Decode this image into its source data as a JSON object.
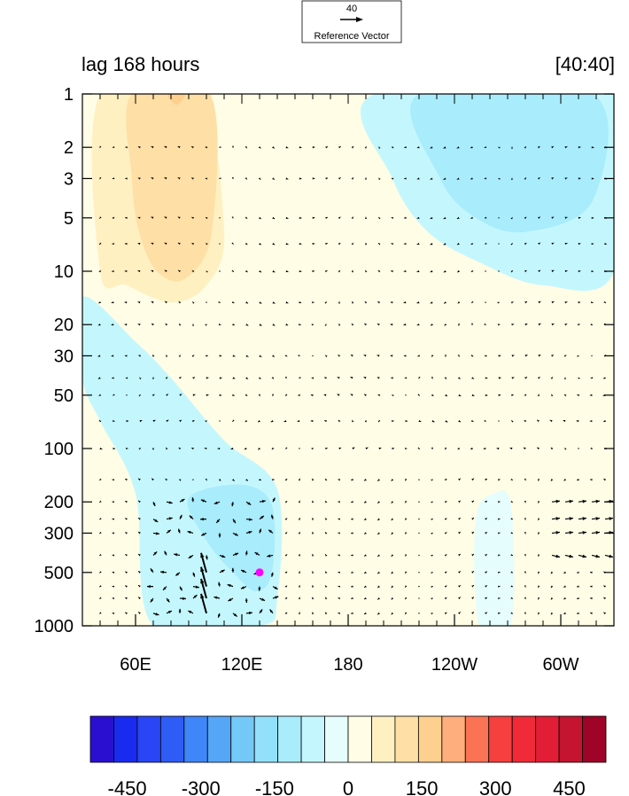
{
  "chart_data": {
    "type": "contour",
    "title_left": "lag 168 hours",
    "title_right": "[40:40]",
    "reference_vector": {
      "magnitude_label": "40",
      "label": "Reference Vector"
    },
    "x_axis": {
      "range_deg_east": [
        30,
        330
      ],
      "ticks": [
        {
          "lon": 60,
          "label": "60E"
        },
        {
          "lon": 120,
          "label": "120E"
        },
        {
          "lon": 180,
          "label": "180"
        },
        {
          "lon": 240,
          "label": "120W"
        },
        {
          "lon": 300,
          "label": "60W"
        }
      ]
    },
    "y_axis": {
      "scale": "log",
      "range_hpa": [
        1000,
        1
      ],
      "ticks": [
        {
          "value": 1,
          "label": "1"
        },
        {
          "value": 2,
          "label": "2"
        },
        {
          "value": 3,
          "label": "3"
        },
        {
          "value": 5,
          "label": "5"
        },
        {
          "value": 10,
          "label": "10"
        },
        {
          "value": 20,
          "label": "20"
        },
        {
          "value": 30,
          "label": "30"
        },
        {
          "value": 50,
          "label": "50"
        },
        {
          "value": 100,
          "label": "100"
        },
        {
          "value": 200,
          "label": "200"
        },
        {
          "value": 300,
          "label": "300"
        },
        {
          "value": 500,
          "label": "500"
        },
        {
          "value": 1000,
          "label": "1000"
        }
      ]
    },
    "colorbar": {
      "levels": [
        -525,
        -475,
        -425,
        -375,
        -325,
        -275,
        -225,
        -175,
        -125,
        -75,
        -25,
        25,
        75,
        125,
        175,
        225,
        275,
        325,
        375,
        425,
        475,
        525
      ],
      "colors": [
        "#2b0fd0",
        "#1a2bf0",
        "#2a45f5",
        "#2f5cf5",
        "#3f86f8",
        "#56a6f8",
        "#74c8f8",
        "#93e0fa",
        "#a9ecfc",
        "#c4f7fd",
        "#e6fdfd",
        "#fffde6",
        "#fff0c2",
        "#fedfa5",
        "#fdd090",
        "#fdae7c",
        "#fb7355",
        "#f63f3f",
        "#f02a38",
        "#e11e35",
        "#c41430",
        "#a00328"
      ],
      "labels": [
        {
          "value": -450,
          "label": "-450"
        },
        {
          "value": -300,
          "label": "-300"
        },
        {
          "value": -150,
          "label": "-150"
        },
        {
          "value": 0,
          "label": "0"
        },
        {
          "value": 150,
          "label": "150"
        },
        {
          "value": 300,
          "label": "300"
        },
        {
          "value": 450,
          "label": "450"
        }
      ]
    },
    "marker": {
      "lon": 130,
      "pressure_hpa": 500,
      "color": "#ff00ff"
    },
    "contour_regions": [
      {
        "name": "tan-upper",
        "value": 100,
        "points": [
          [
            40,
            1
          ],
          [
            95,
            1
          ],
          [
            110,
            6
          ],
          [
            100,
            12
          ],
          [
            80,
            15
          ],
          [
            55,
            12
          ],
          [
            40,
            10
          ]
        ]
      },
      {
        "name": "tan-core",
        "value": 150,
        "points": [
          [
            58,
            1
          ],
          [
            102,
            1
          ],
          [
            103,
            6
          ],
          [
            88,
            11
          ],
          [
            72,
            10
          ],
          [
            62,
            6
          ],
          [
            58,
            3
          ]
        ]
      },
      {
        "name": "orange-spot",
        "value": 200,
        "points": [
          [
            78,
            1
          ],
          [
            88,
            1
          ],
          [
            83,
            1.15
          ]
        ]
      },
      {
        "name": "cream-strip",
        "value": 25,
        "points": [
          [
            150,
            1
          ],
          [
            170,
            1
          ],
          [
            175,
            20
          ],
          [
            190,
            60
          ],
          [
            200,
            120
          ],
          [
            180,
            90
          ],
          [
            150,
            30
          ],
          [
            120,
            15
          ],
          [
            150,
            5
          ]
        ]
      },
      {
        "name": "blue-ne-outer",
        "value": -50,
        "points": [
          [
            195,
            1
          ],
          [
            330,
            1
          ],
          [
            330,
            10
          ],
          [
            290,
            12
          ],
          [
            255,
            9
          ],
          [
            225,
            6
          ],
          [
            205,
            3
          ]
        ]
      },
      {
        "name": "blue-ne-inner",
        "value": -100,
        "points": [
          [
            220,
            1
          ],
          [
            318,
            1
          ],
          [
            318,
            4
          ],
          [
            280,
            6
          ],
          [
            252,
            5
          ],
          [
            232,
            3
          ]
        ]
      },
      {
        "name": "blue-west",
        "value": -50,
        "points": [
          [
            30,
            14
          ],
          [
            60,
            25
          ],
          [
            80,
            40
          ],
          [
            110,
            90
          ],
          [
            140,
            170
          ],
          [
            140,
            700
          ],
          [
            130,
            1000
          ],
          [
            70,
            1000
          ],
          [
            60,
            180
          ],
          [
            40,
            70
          ],
          [
            30,
            40
          ]
        ]
      },
      {
        "name": "blue-west-inner",
        "value": -100,
        "points": [
          [
            90,
            190
          ],
          [
            120,
            160
          ],
          [
            137,
            210
          ],
          [
            137,
            500
          ],
          [
            128,
            640
          ],
          [
            115,
            500
          ],
          [
            100,
            330
          ]
        ]
      },
      {
        "name": "tan-mid",
        "value": 50,
        "points": [
          [
            209,
            80
          ],
          [
            222,
            110
          ],
          [
            222,
            190
          ],
          [
            212,
            230
          ],
          [
            203,
            200
          ],
          [
            201,
            110
          ]
        ]
      },
      {
        "name": "tan-east",
        "value": 50,
        "points": [
          [
            280,
            160
          ],
          [
            305,
            140
          ],
          [
            318,
            200
          ],
          [
            314,
            330
          ],
          [
            300,
            420
          ],
          [
            285,
            380
          ],
          [
            278,
            250
          ]
        ]
      },
      {
        "name": "pale-blue-east",
        "value": -25,
        "points": [
          [
            262,
            180
          ],
          [
            272,
            210
          ],
          [
            272,
            1000
          ],
          [
            254,
            1000
          ],
          [
            252,
            250
          ]
        ]
      },
      {
        "name": "cream-sw",
        "value": 25,
        "points": [
          [
            30,
            260
          ],
          [
            42,
            280
          ],
          [
            48,
            1000
          ],
          [
            30,
            1000
          ]
        ]
      }
    ],
    "wind_vectors_note": "field of arrows; strongest near 90-130E between 200-1000 hPa and near 300-320E at 200-300 hPa"
  }
}
